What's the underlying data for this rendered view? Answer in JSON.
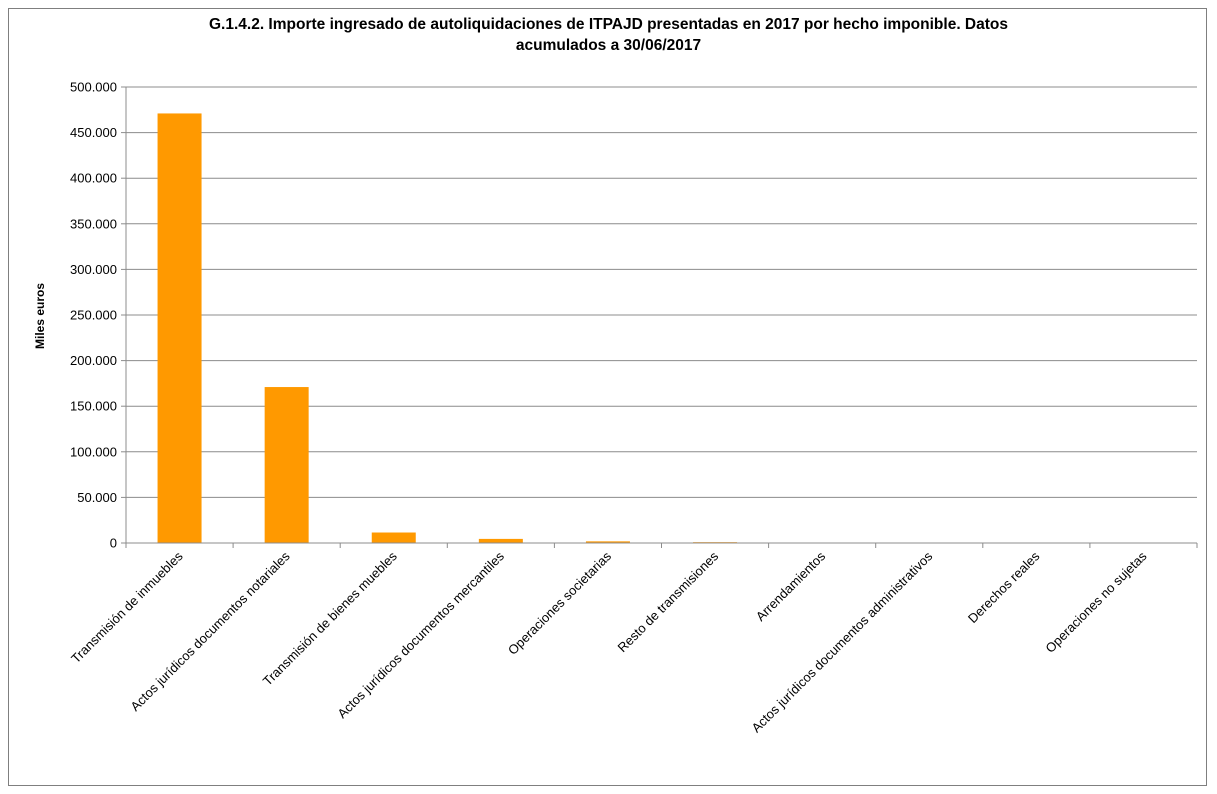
{
  "chart_data": {
    "type": "bar",
    "title_line1": "G.1.4.2. Importe ingresado de autoliquidaciones de ITPAJD presentadas en 2017 por hecho imponible. Datos",
    "title_line2": "acumulados a 30/06/2017",
    "ylabel": "Miles euros",
    "xlabel": "",
    "ylim": [
      0,
      500000
    ],
    "yticks": [
      0,
      50000,
      100000,
      150000,
      200000,
      250000,
      300000,
      350000,
      400000,
      450000,
      500000
    ],
    "ytick_labels": [
      "0",
      "50.000",
      "100.000",
      "150.000",
      "200.000",
      "250.000",
      "300.000",
      "350.000",
      "400.000",
      "450.000",
      "500.000"
    ],
    "grid": true,
    "bar_color": "#ff9900",
    "categories": [
      "Transmisión de inmuebles",
      "Actos  jurídicos documentos notariales",
      "Transmisión de bienes muebles",
      "Actos  jurídicos documentos mercantiles",
      "Operaciones societarias",
      "Resto de transmisiones",
      "Arrendamientos",
      "Actos  jurídicos documentos administrativos",
      "Derechos reales",
      "Operaciones no sujetas"
    ],
    "values": [
      471000,
      171000,
      11500,
      4500,
      1800,
      900,
      500,
      200,
      100,
      50
    ]
  }
}
